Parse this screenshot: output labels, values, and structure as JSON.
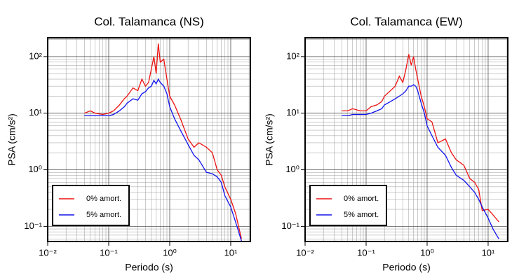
{
  "chart_data": [
    {
      "type": "line",
      "title": "Col. Talamanca (NS)",
      "xlabel": "Periodo (s)",
      "ylabel": "PSA (cm/s²)",
      "log_x": true,
      "log_y": true,
      "grid": true,
      "legend": "lower left",
      "xlim": [
        0.01,
        21
      ],
      "ylim": [
        0.054,
        215
      ],
      "xticks": [
        {
          "value": 0.01,
          "label": "10⁻²"
        },
        {
          "value": 0.1,
          "label": "10⁻¹"
        },
        {
          "value": 1,
          "label": "10⁰"
        },
        {
          "value": 10,
          "label": "10¹"
        }
      ],
      "yticks": [
        {
          "value": 0.1,
          "label": "10⁻¹"
        },
        {
          "value": 1,
          "label": "10⁰"
        },
        {
          "value": 10,
          "label": "10¹"
        },
        {
          "value": 100,
          "label": "10²"
        }
      ],
      "x": [
        0.04,
        0.05,
        0.06,
        0.08,
        0.1,
        0.12,
        0.15,
        0.18,
        0.2,
        0.25,
        0.3,
        0.35,
        0.4,
        0.45,
        0.5,
        0.55,
        0.6,
        0.65,
        0.7,
        0.8,
        0.9,
        1.0,
        1.2,
        1.5,
        2,
        2.5,
        3,
        4,
        5,
        6,
        7,
        8,
        10,
        12,
        15
      ],
      "series": [
        {
          "name": "0% amort.",
          "color": "#ee1111",
          "values": [
            10,
            11,
            10,
            9.5,
            10,
            11,
            14,
            18,
            20,
            28,
            25,
            40,
            30,
            35,
            60,
            100,
            50,
            170,
            80,
            90,
            40,
            20,
            14,
            8,
            3.5,
            2.5,
            3,
            2.5,
            2,
            1,
            0.8,
            0.5,
            0.3,
            0.17,
            0.06
          ]
        },
        {
          "name": "5% amort.",
          "color": "#1111ee",
          "values": [
            9,
            9,
            9,
            9,
            9,
            9.5,
            11,
            13,
            15,
            18,
            17,
            22,
            24,
            28,
            30,
            38,
            33,
            40,
            35,
            30,
            22,
            13,
            8,
            5,
            2.8,
            1.8,
            1.5,
            0.9,
            0.85,
            0.75,
            0.6,
            0.35,
            0.22,
            0.12,
            0.055
          ]
        }
      ]
    },
    {
      "type": "line",
      "title": "Col. Talamanca (EW)",
      "xlabel": "Periodo (s)",
      "ylabel": "PSA (cm/s²)",
      "log_x": true,
      "log_y": true,
      "grid": true,
      "legend": "lower left",
      "xlim": [
        0.01,
        21
      ],
      "ylim": [
        0.054,
        215
      ],
      "xticks": [
        {
          "value": 0.01,
          "label": "10⁻²"
        },
        {
          "value": 0.1,
          "label": "10⁻¹"
        },
        {
          "value": 1,
          "label": "10⁰"
        },
        {
          "value": 10,
          "label": "10¹"
        }
      ],
      "yticks": [
        {
          "value": 0.1,
          "label": "10⁻¹"
        },
        {
          "value": 1,
          "label": "10⁰"
        },
        {
          "value": 10,
          "label": "10¹"
        },
        {
          "value": 100,
          "label": "10²"
        }
      ],
      "x": [
        0.04,
        0.05,
        0.06,
        0.08,
        0.1,
        0.12,
        0.15,
        0.18,
        0.2,
        0.25,
        0.3,
        0.35,
        0.4,
        0.45,
        0.5,
        0.55,
        0.6,
        0.65,
        0.7,
        0.8,
        0.9,
        1.0,
        1.2,
        1.5,
        2,
        2.5,
        3,
        4,
        5,
        6,
        7,
        8,
        10,
        12,
        15
      ],
      "series": [
        {
          "name": "0% amort.",
          "color": "#ee1111",
          "values": [
            11,
            11,
            12,
            11,
            11,
            13,
            14,
            16,
            20,
            25,
            30,
            45,
            35,
            60,
            110,
            70,
            100,
            60,
            40,
            20,
            13,
            8,
            7,
            3,
            3.5,
            2,
            1.5,
            1.2,
            0.7,
            0.6,
            0.45,
            0.19,
            0.2,
            0.16,
            0.12
          ]
        },
        {
          "name": "5% amort.",
          "color": "#1111ee",
          "values": [
            9,
            9,
            9.5,
            9.5,
            9.5,
            10,
            11,
            12,
            14,
            16,
            18,
            20,
            22,
            25,
            30,
            30,
            32,
            30,
            25,
            15,
            10,
            6,
            4,
            2.5,
            1.8,
            1.1,
            0.8,
            0.65,
            0.5,
            0.4,
            0.3,
            0.22,
            0.14,
            0.09,
            0.06
          ]
        }
      ]
    }
  ]
}
